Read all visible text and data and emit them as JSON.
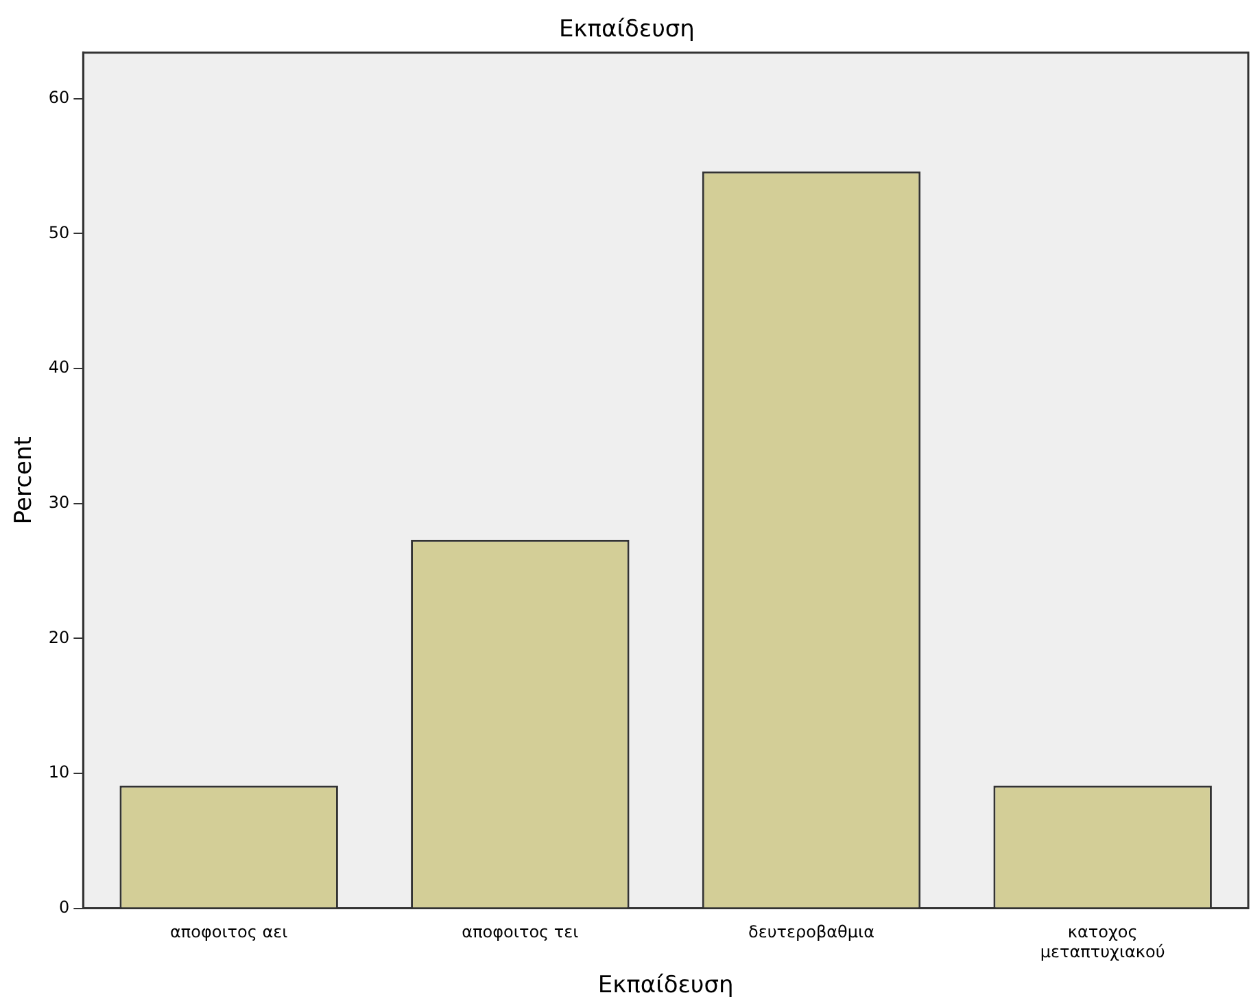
{
  "chart_data": {
    "type": "bar",
    "title": "Εκπαίδευση",
    "xlabel": "Εκπαίδευση",
    "ylabel": "Percent",
    "categories": [
      "αποφοιτος αει",
      "αποφοιτος τει",
      "δευτεροβαθμια",
      "κατοχος μεταπτυχιακού"
    ],
    "values": [
      9.1,
      27.3,
      54.6,
      9.1
    ],
    "color": "#d3ce97",
    "ylim": [
      0,
      63.4
    ],
    "yticks": [
      0,
      10,
      20,
      30,
      40,
      50,
      60
    ],
    "grid": false,
    "legend": false
  }
}
